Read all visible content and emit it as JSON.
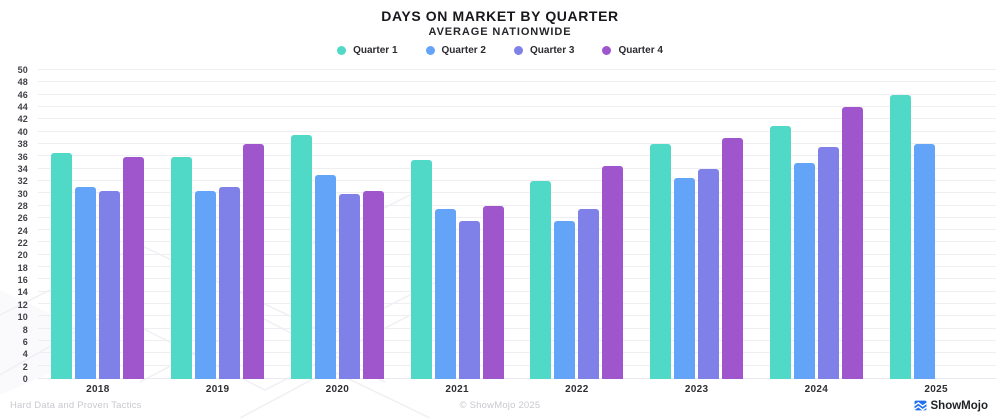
{
  "header": {
    "title": "DAYS ON MARKET BY QUARTER",
    "subtitle": "AVERAGE NATIONWIDE"
  },
  "chart_data": {
    "type": "bar",
    "title": "DAYS ON MARKET BY QUARTER",
    "subtitle": "AVERAGE NATIONWIDE",
    "categories": [
      "2018",
      "2019",
      "2020",
      "2021",
      "2022",
      "2023",
      "2024",
      "2025"
    ],
    "series": [
      {
        "name": "Quarter 1",
        "color": "#4fd9c6",
        "values": [
          36.5,
          36,
          39.5,
          35.5,
          32,
          38,
          41,
          46
        ]
      },
      {
        "name": "Quarter 2",
        "color": "#63a4f8",
        "values": [
          31,
          30.5,
          33,
          27.5,
          25.5,
          32.5,
          35,
          38
        ]
      },
      {
        "name": "Quarter 3",
        "color": "#8081e8",
        "values": [
          30.5,
          31,
          30,
          25.5,
          27.5,
          34,
          37.5,
          null
        ]
      },
      {
        "name": "Quarter 4",
        "color": "#9f56cd",
        "values": [
          36,
          38,
          30.5,
          28,
          34.5,
          39,
          44,
          null
        ]
      }
    ],
    "xlabel": "",
    "ylabel": "",
    "ylim": [
      0,
      50
    ],
    "ytick_step": 2,
    "grid": true,
    "legend_position": "top"
  },
  "footer": {
    "left": "Hard Data and Proven Tactics",
    "center": "© ShowMojo 2025",
    "brand": "ShowMojo"
  }
}
